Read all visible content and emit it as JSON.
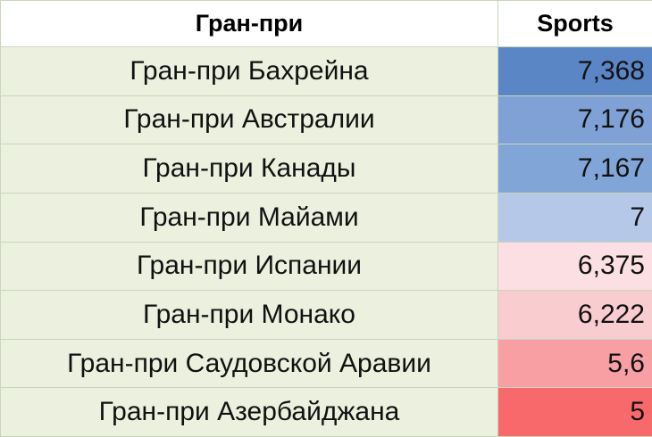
{
  "table": {
    "header": [
      "Гран-при",
      "Sports"
    ],
    "rows": [
      {
        "name": "Гран-при Бахрейна",
        "value": "7,368",
        "color": "#5a86c5"
      },
      {
        "name": "Гран-при Австралии",
        "value": "7,176",
        "color": "#7fa1d6"
      },
      {
        "name": "Гран-при Канады",
        "value": "7,167",
        "color": "#82a5d8"
      },
      {
        "name": "Гран-при Майами",
        "value": "7",
        "color": "#b5c8e8"
      },
      {
        "name": "Гран-при Испании",
        "value": "6,375",
        "color": "#fbdfe2"
      },
      {
        "name": "Гран-при Монако",
        "value": "6,222",
        "color": "#f9ccd0"
      },
      {
        "name": "Гран-при Саудовской Аравии",
        "value": "5,6",
        "color": "#f89fa3"
      },
      {
        "name": "Гран-при Азербайджана",
        "value": "5",
        "color": "#f8696b"
      }
    ]
  }
}
